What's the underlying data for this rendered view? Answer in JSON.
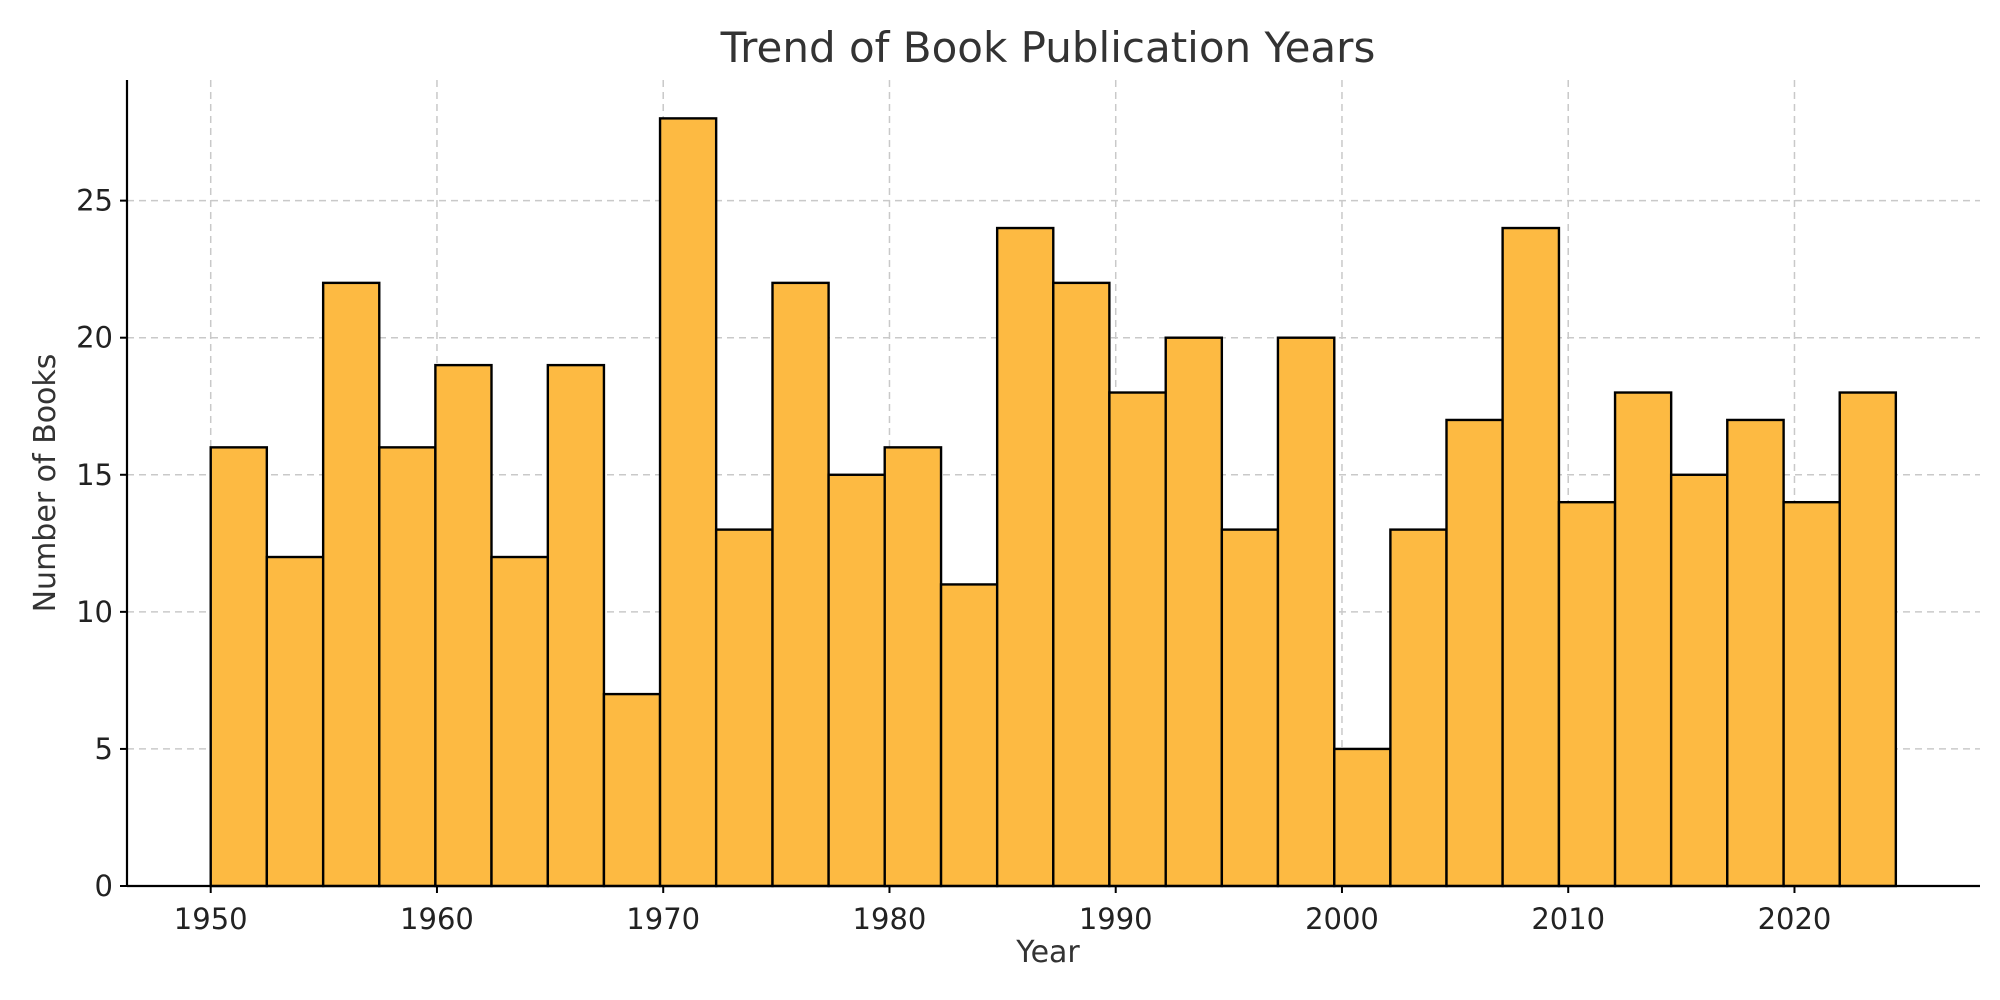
{
  "chart_data": {
    "type": "bar",
    "title": "Trend of Book Publication Years",
    "xlabel": "Year",
    "ylabel": "Number of Books",
    "bin_edges": [
      1950,
      1952.48,
      1954.97,
      1957.45,
      1959.93,
      1962.41,
      1964.9,
      1967.38,
      1969.86,
      1972.34,
      1974.83,
      1977.31,
      1979.79,
      1982.28,
      1984.76,
      1987.24,
      1989.72,
      1992.21,
      1994.69,
      1997.17,
      1999.66,
      2002.14,
      2004.62,
      2007.1,
      2009.59,
      2012.07,
      2014.55,
      2017.03,
      2019.52,
      2022,
      2024.48
    ],
    "values": [
      16,
      12,
      22,
      16,
      19,
      12,
      19,
      7,
      28,
      13,
      22,
      15,
      16,
      11,
      24,
      22,
      18,
      20,
      13,
      20,
      5,
      13,
      17,
      24,
      14,
      18,
      15,
      17,
      14,
      18
    ],
    "xlim": [
      1946.3,
      2028.2
    ],
    "ylim": [
      0,
      29.4
    ],
    "x_ticks": [
      1950,
      1960,
      1970,
      1980,
      1990,
      2000,
      2010,
      2020
    ],
    "y_ticks": [
      0,
      5,
      10,
      15,
      20,
      25
    ],
    "grid": true,
    "colors": {
      "bar_fill": "#FDBA42",
      "bar_edge": "#000000",
      "grid": "#c9c9c9"
    }
  }
}
